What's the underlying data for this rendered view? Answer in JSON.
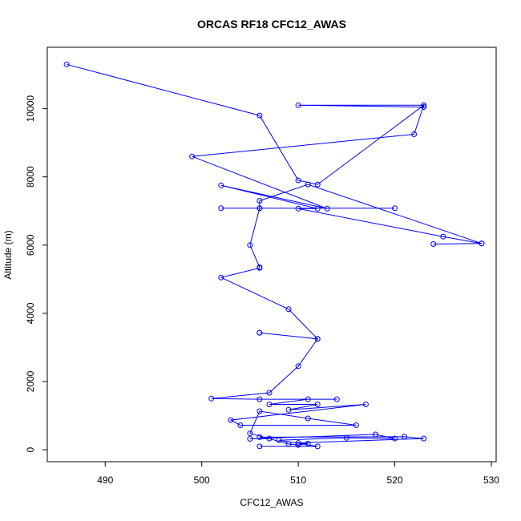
{
  "chart_data": {
    "type": "line",
    "title": "ORCAS RF18 CFC12_AWAS",
    "xlabel": "CFC12_AWAS",
    "ylabel": "Altitude (m)",
    "xlim": [
      484,
      530.5
    ],
    "ylim": [
      -350,
      11800
    ],
    "xticks": [
      490,
      500,
      510,
      520,
      530
    ],
    "yticks": [
      0,
      2000,
      4000,
      6000,
      8000,
      10000
    ],
    "grid": false,
    "markers": "open-circle",
    "color": "#0000ff",
    "series": [
      {
        "x": [
          486,
          506,
          510,
          512,
          523,
          523,
          510,
          523,
          522,
          499,
          513,
          502,
          512,
          510,
          525,
          529,
          524,
          529,
          511,
          506,
          506,
          520,
          502,
          506,
          505,
          506,
          506,
          502,
          509,
          512,
          506,
          506,
          512,
          510,
          507,
          501,
          506,
          514,
          511,
          507,
          512,
          509,
          517,
          503,
          504,
          516,
          511,
          506,
          505,
          509,
          510,
          511,
          510,
          523,
          521,
          506,
          507,
          505,
          518,
          520,
          515,
          508,
          512,
          506
        ],
        "y": [
          11300,
          9800,
          7900,
          7780,
          10100,
          10050,
          10100,
          10100,
          9250,
          8600,
          7070,
          7750,
          7070,
          7070,
          6250,
          6050,
          6030,
          6050,
          7780,
          7300,
          7080,
          7080,
          7080,
          7080,
          6000,
          5350,
          5330,
          5050,
          4120,
          3250,
          3430,
          3430,
          3250,
          2450,
          1670,
          1500,
          1480,
          1480,
          1480,
          1330,
          1330,
          1170,
          1330,
          870,
          720,
          720,
          920,
          1130,
          480,
          170,
          140,
          180,
          200,
          330,
          380,
          370,
          330,
          320,
          450,
          330,
          350,
          280,
          100,
          100
        ]
      }
    ]
  }
}
